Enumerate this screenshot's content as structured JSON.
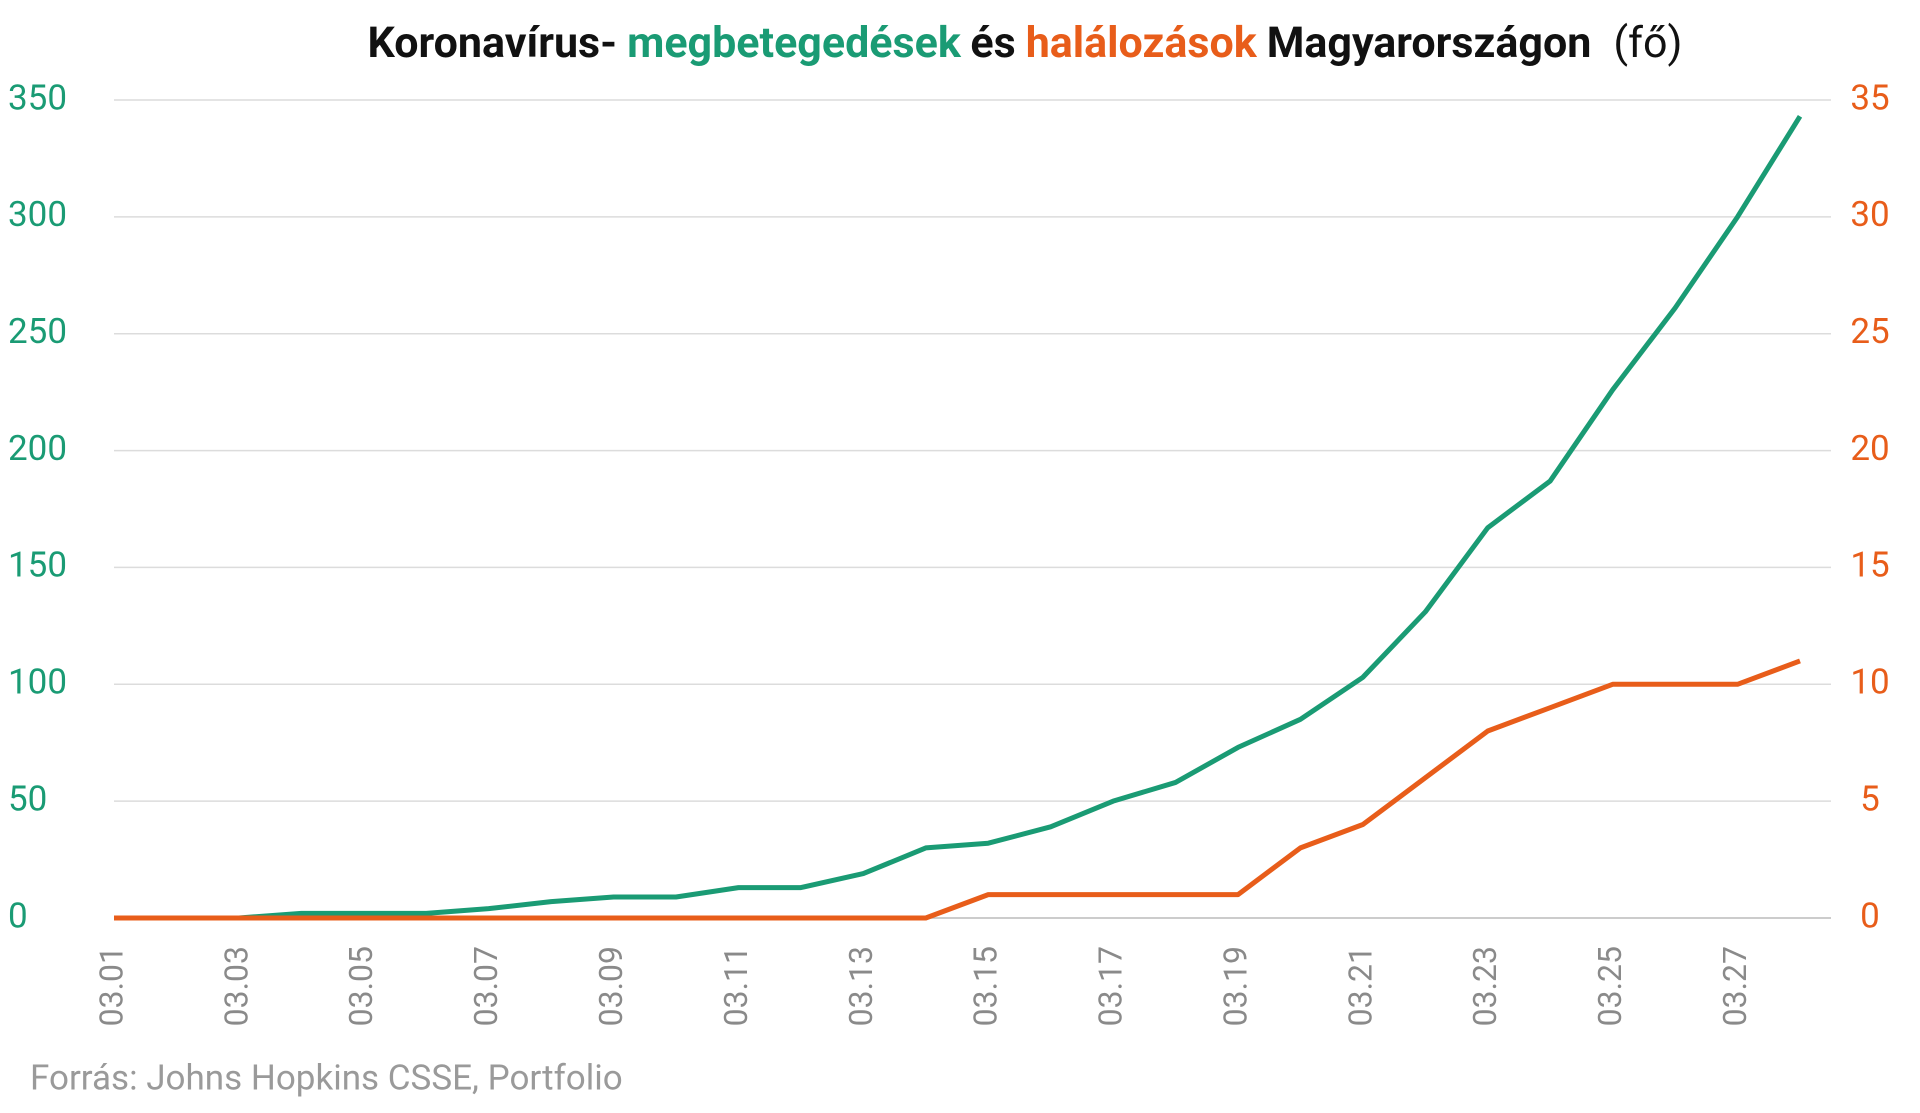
{
  "chart_data": {
    "type": "line",
    "title_parts": [
      {
        "text": "Koronavírus-",
        "color": "#111111"
      },
      {
        "text": "megbetegedések",
        "color": "#1a9b74"
      },
      {
        "text": "és",
        "color": "#111111"
      },
      {
        "text": "halálozások",
        "color": "#e85d1a"
      },
      {
        "text": "Magyarországon",
        "color": "#111111"
      },
      {
        "text": "(fő)",
        "color": "#111111"
      }
    ],
    "source": "Forrás: Johns Hopkins CSSE, Portfolio",
    "categories": [
      "03.01",
      null,
      "03.03",
      null,
      "03.05",
      null,
      "03.07",
      null,
      "03.09",
      null,
      "03.11",
      null,
      "03.13",
      null,
      "03.15",
      null,
      "03.17",
      null,
      "03.19",
      null,
      "03.21",
      null,
      "03.23",
      null,
      "03.25",
      null,
      "03.27",
      null
    ],
    "series": [
      {
        "name": "megbetegedések",
        "color": "#1a9b74",
        "values": [
          0,
          0,
          0,
          2,
          2,
          2,
          4,
          7,
          9,
          9,
          13,
          13,
          19,
          30,
          32,
          39,
          50,
          58,
          73,
          85,
          103,
          131,
          167,
          187,
          226,
          261,
          300,
          343
        ]
      },
      {
        "name": "halálozások",
        "color": "#e85d1a",
        "axis": "y2",
        "values": [
          0,
          0,
          0,
          0,
          0,
          0,
          0,
          0,
          0,
          0,
          0,
          0,
          0,
          0,
          1,
          1,
          1,
          1,
          1,
          3,
          4,
          6,
          8,
          9,
          10,
          10,
          10,
          11
        ]
      }
    ],
    "ylim": [
      0,
      350
    ],
    "yticks": [
      0,
      50,
      100,
      150,
      200,
      250,
      300,
      350
    ],
    "y2lim": [
      0,
      35
    ],
    "y2ticks": [
      0,
      5,
      10,
      15,
      20,
      25,
      30,
      35
    ],
    "grid": true
  }
}
